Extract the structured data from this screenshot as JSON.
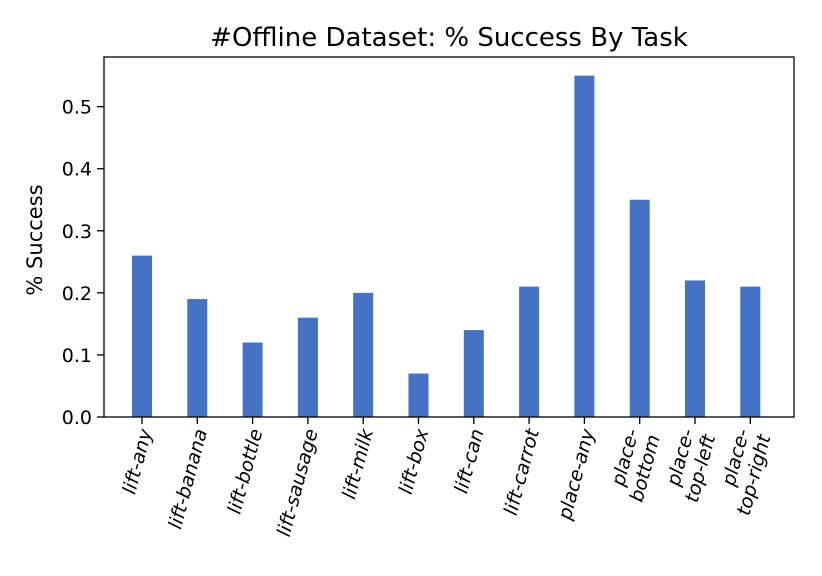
{
  "chart_data": {
    "type": "bar",
    "title": "#Offline Dataset: % Success By Task",
    "xlabel": "",
    "ylabel": "% Success",
    "categories": [
      [
        "lift-any"
      ],
      [
        "lift-banana"
      ],
      [
        "lift-bottle"
      ],
      [
        "lift-sausage"
      ],
      [
        "lift-milk"
      ],
      [
        "lift-box"
      ],
      [
        "lift-can"
      ],
      [
        "lift-carrot"
      ],
      [
        "place-any"
      ],
      [
        "place-",
        "bottom"
      ],
      [
        "place-",
        "top-left"
      ],
      [
        "place-",
        "top-right"
      ]
    ],
    "values": [
      0.26,
      0.19,
      0.12,
      0.16,
      0.2,
      0.07,
      0.14,
      0.21,
      0.55,
      0.35,
      0.22,
      0.21
    ],
    "ylim": [
      0,
      0.58
    ],
    "yticks": [
      0.0,
      0.1,
      0.2,
      0.3,
      0.4,
      0.5
    ],
    "ytick_labels": [
      "0.0",
      "0.1",
      "0.2",
      "0.3",
      "0.4",
      "0.5"
    ],
    "grid": false,
    "bar_color": "#4472c4"
  }
}
